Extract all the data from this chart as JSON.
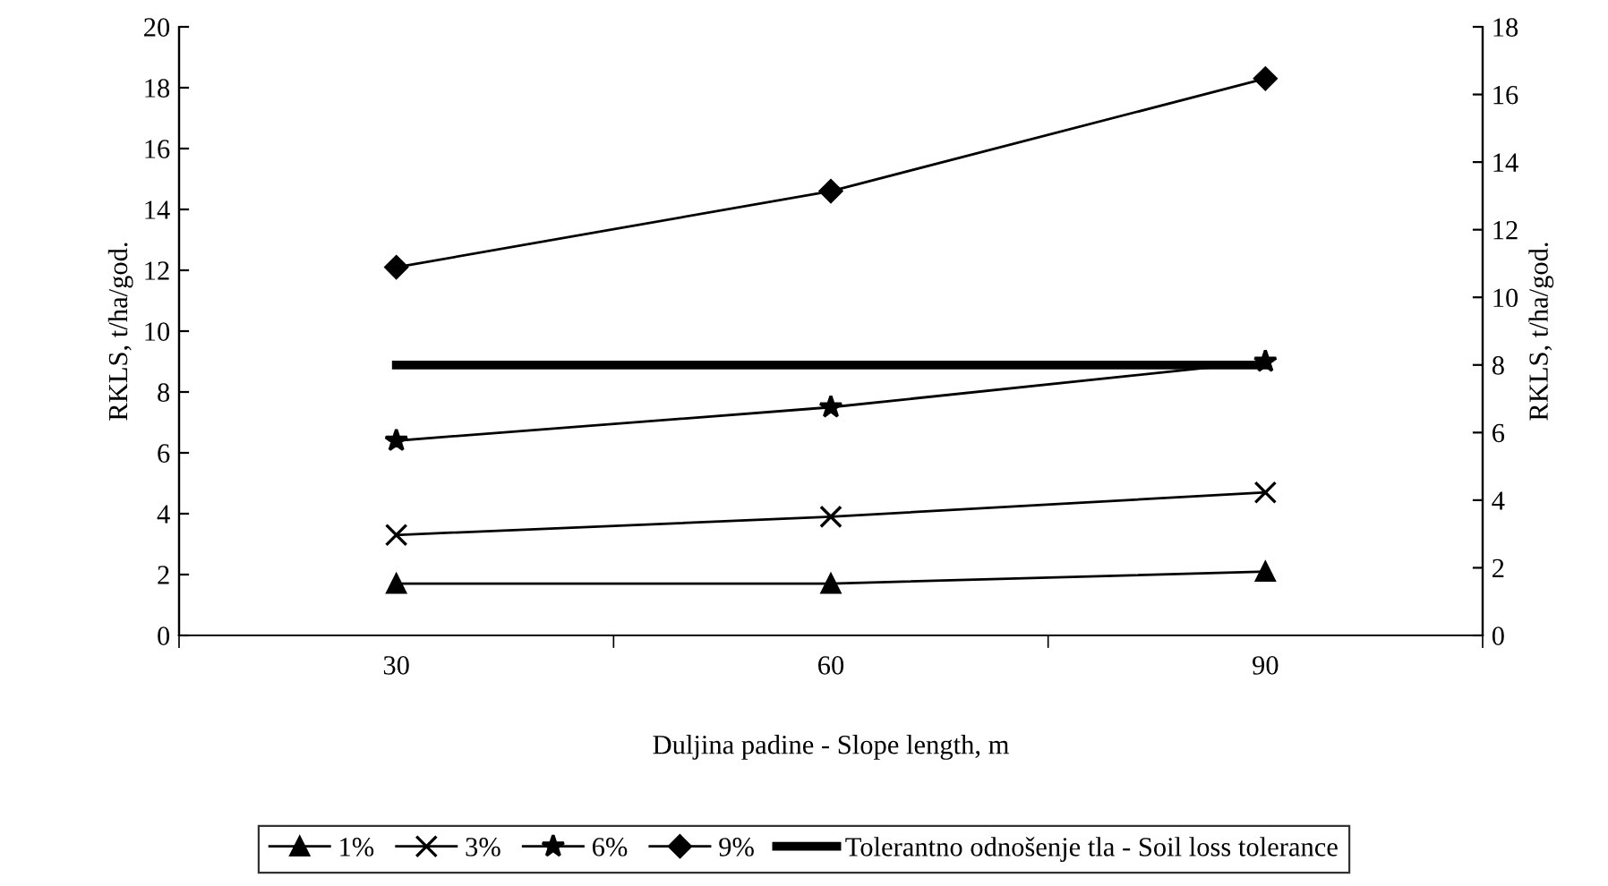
{
  "chart_data": {
    "type": "line",
    "xlabel": "Duljina padine - Slope length, m",
    "ylabel": "RKLS, t/ha/god.",
    "y2label": "RKLS, t/ha/god.",
    "categories": [
      "30",
      "60",
      "90"
    ],
    "series": [
      {
        "name": "1%",
        "color": "#000000",
        "marker": "triangle",
        "values": [
          1.7,
          1.7,
          2.1
        ]
      },
      {
        "name": "3%",
        "color": "#000000",
        "marker": "cross",
        "values": [
          3.3,
          3.9,
          4.7
        ]
      },
      {
        "name": "6%",
        "color": "#000000",
        "marker": "star",
        "values": [
          6.4,
          7.5,
          9.0
        ]
      },
      {
        "name": "9%",
        "color": "#000000",
        "marker": "diamond",
        "values": [
          12.1,
          14.6,
          18.3
        ]
      },
      {
        "name": "Tolerantno odnošenje tla - Soil loss tolerance",
        "color": "#000000",
        "marker": "none",
        "axis": "y2",
        "values": [
          8,
          8,
          8
        ]
      }
    ],
    "ylim": [
      0,
      20
    ],
    "yticks": [
      0,
      2,
      4,
      6,
      8,
      10,
      12,
      14,
      16,
      18,
      20
    ],
    "y2lim": [
      0,
      18
    ],
    "y2ticks": [
      0,
      2,
      4,
      6,
      8,
      10,
      12,
      14,
      16,
      18
    ],
    "grid": false,
    "legend": "bottom",
    "line_style": "solid"
  }
}
